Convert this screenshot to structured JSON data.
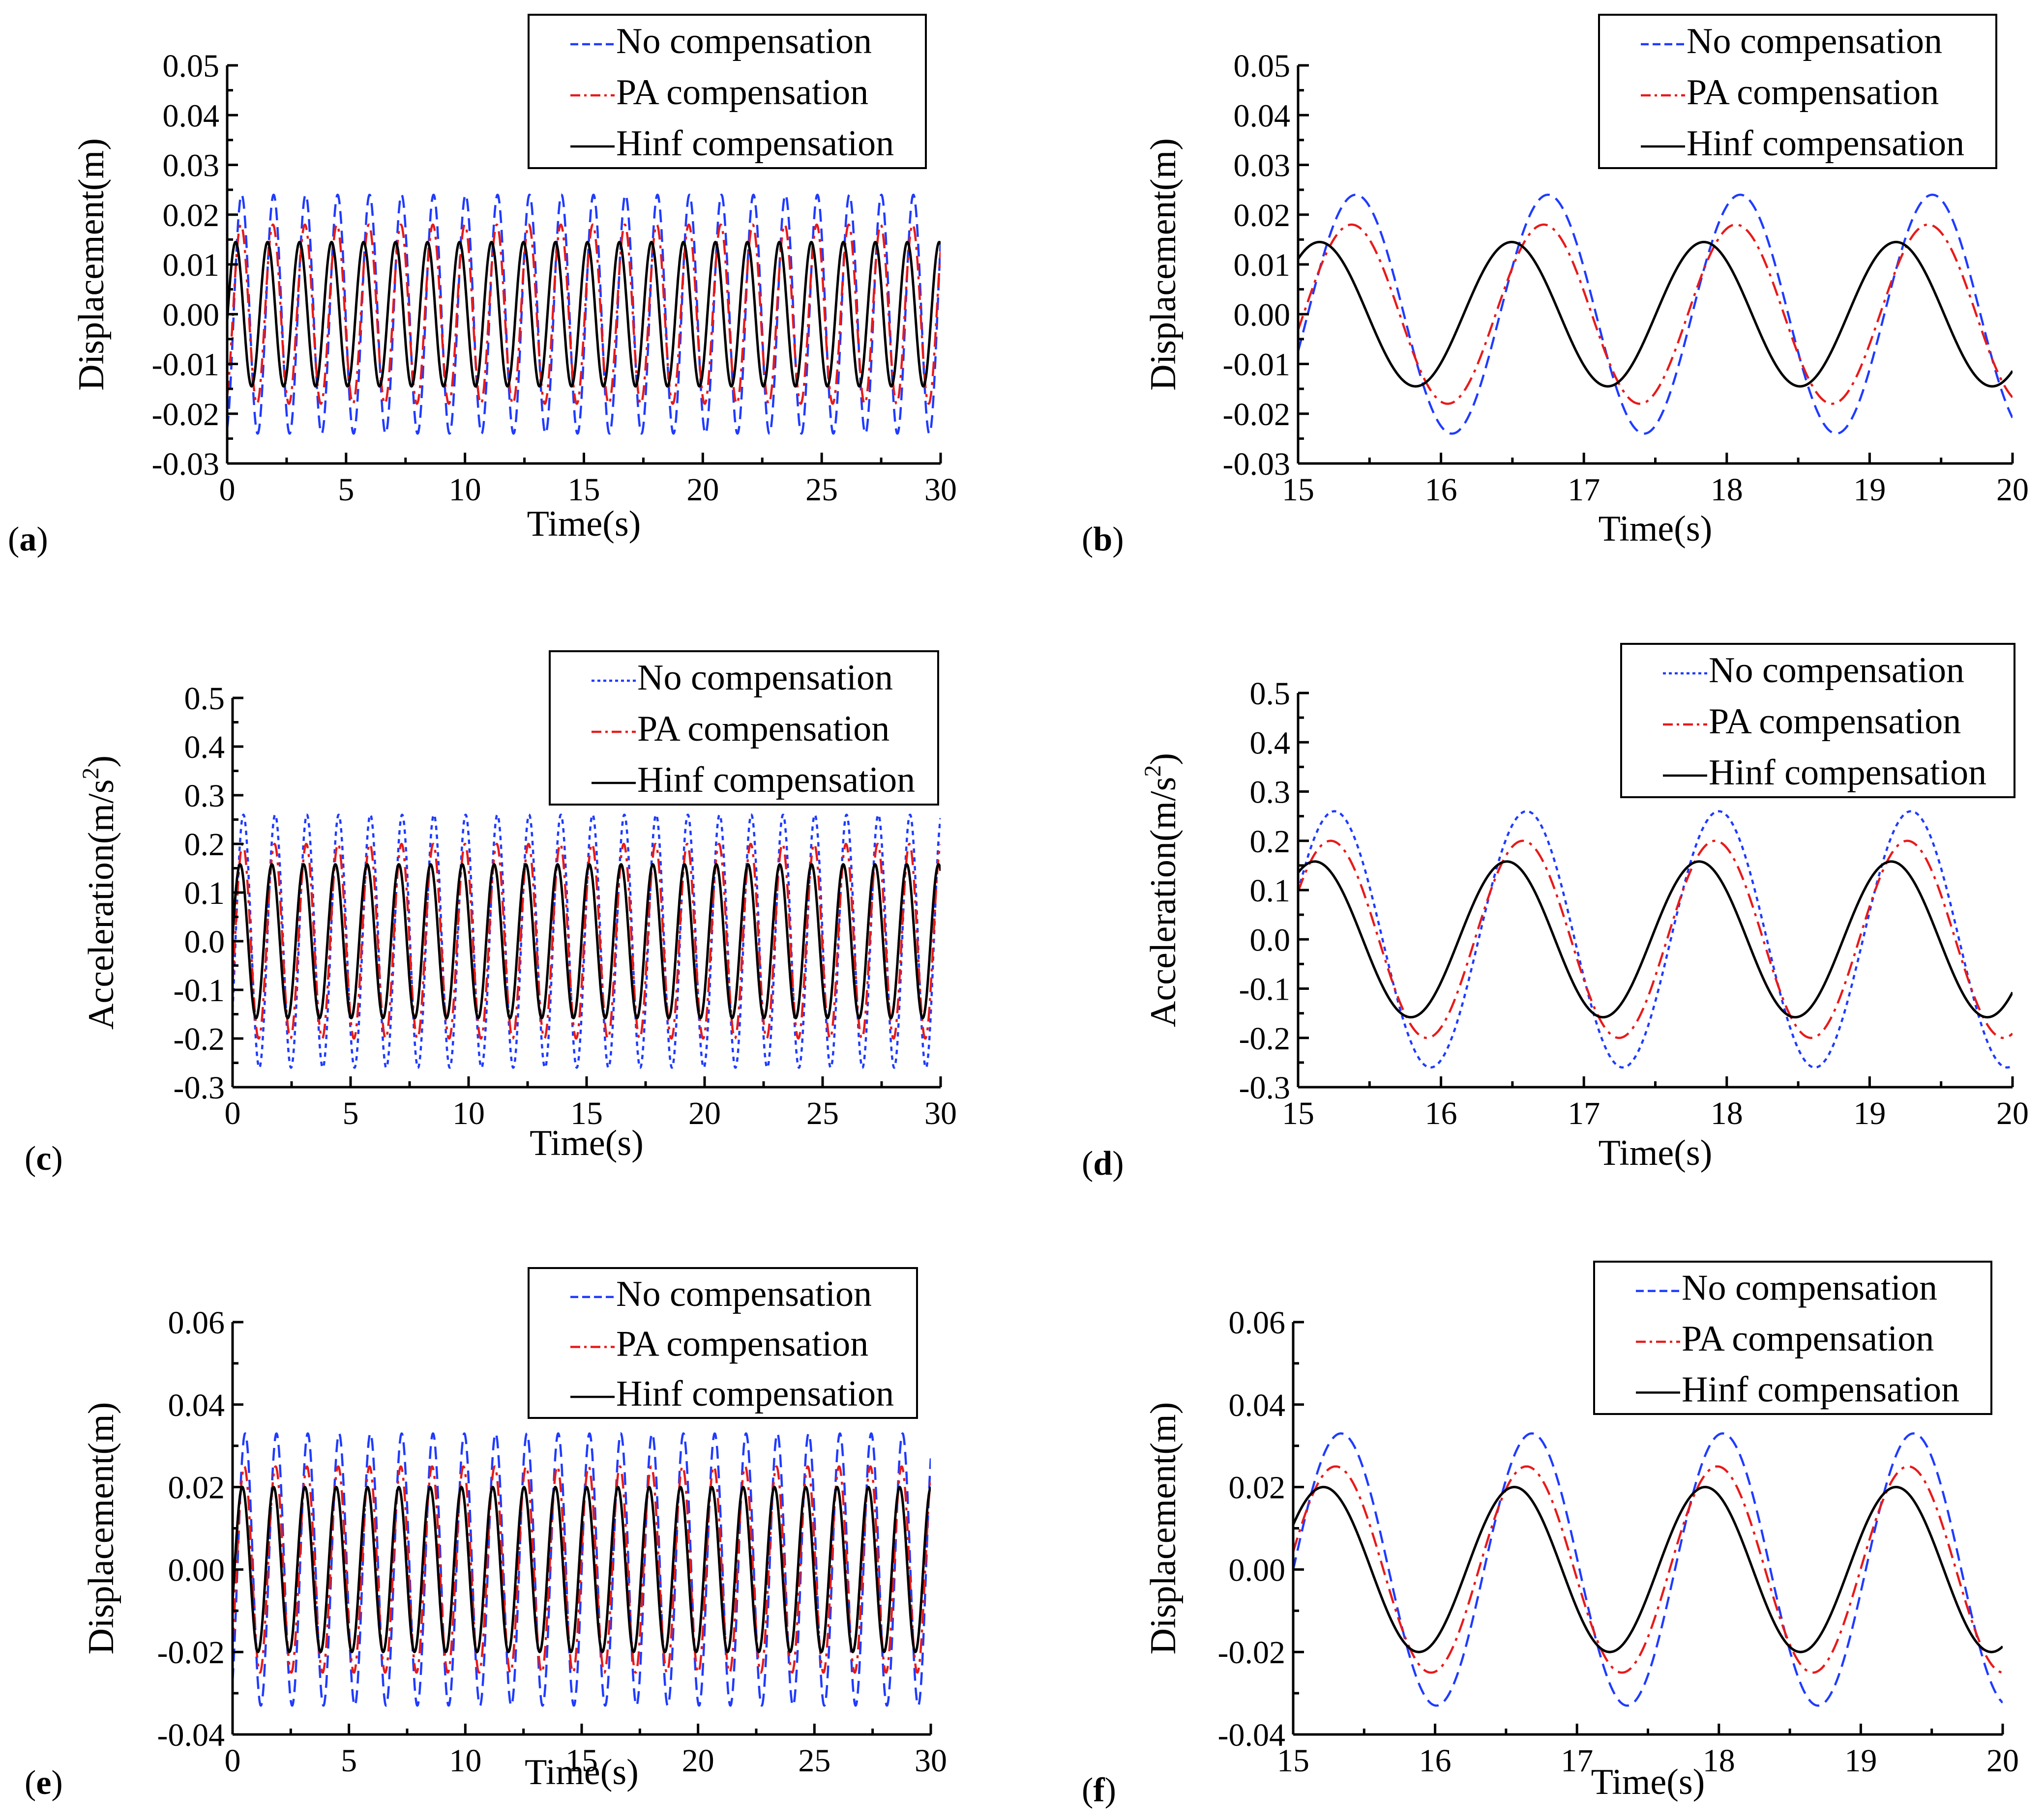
{
  "figure": {
    "panel_letter_open": "(",
    "panel_letter_close": ")"
  },
  "chart_data": [
    {
      "id": "a",
      "type": "line",
      "panel_label": "a",
      "xlabel": "Time(s)",
      "ylabel": "Displacement(m)",
      "xlim": [
        0,
        30
      ],
      "ylim": [
        -0.03,
        0.05
      ],
      "xticks": [
        "0",
        "5",
        "10",
        "15",
        "20",
        "25",
        "30"
      ],
      "yticks": [
        "-0.03",
        "-0.02",
        "-0.01",
        "0.00",
        "0.01",
        "0.02",
        "0.03",
        "0.04",
        "0.05"
      ],
      "series": [
        {
          "name": "No compensation",
          "color": "#1f3bff",
          "dash": "dash",
          "function": "sine",
          "amplitude": 0.024,
          "period": 1.345,
          "phase_deg": -73
        },
        {
          "name": "PA compensation",
          "color": "#e81a1a",
          "dash": "dashdot",
          "function": "sine",
          "amplitude": 0.018,
          "period": 1.345,
          "phase_deg": -65
        },
        {
          "name": "Hinf compensation",
          "color": "#000000",
          "dash": "solid",
          "function": "sine",
          "amplitude": 0.0145,
          "period": 1.345,
          "phase_deg": -5
        }
      ]
    },
    {
      "id": "b",
      "type": "line",
      "panel_label": "b",
      "xlabel": "Time(s)",
      "ylabel": "Displacement(m)",
      "xlim": [
        15,
        20
      ],
      "ylim": [
        -0.03,
        0.05
      ],
      "xticks": [
        "15",
        "16",
        "17",
        "18",
        "19",
        "20"
      ],
      "yticks": [
        "-0.03",
        "-0.02",
        "-0.01",
        "0.00",
        "0.01",
        "0.02",
        "0.03",
        "0.04",
        "0.05"
      ],
      "series": [
        {
          "name": "No compensation",
          "color": "#1f3bff",
          "dash": "dash",
          "function": "sine",
          "amplitude": 0.024,
          "period": 1.345,
          "phase_deg": -73
        },
        {
          "name": "PA compensation",
          "color": "#e81a1a",
          "dash": "dashdot",
          "function": "sine",
          "amplitude": 0.018,
          "period": 1.345,
          "phase_deg": -65
        },
        {
          "name": "Hinf compensation",
          "color": "#000000",
          "dash": "solid",
          "function": "sine",
          "amplitude": 0.0145,
          "period": 1.345,
          "phase_deg": -5
        }
      ]
    },
    {
      "id": "c",
      "type": "line",
      "panel_label": "c",
      "xlabel": "Time(s)",
      "ylabel": "Acceleration(m/s",
      "ylabel_sup": "2",
      "ylabel_end": ")",
      "xlim": [
        0,
        30
      ],
      "ylim": [
        -0.3,
        0.5
      ],
      "xticks": [
        "0",
        "5",
        "10",
        "15",
        "20",
        "25",
        "30"
      ],
      "yticks": [
        "-0.3",
        "-0.2",
        "-0.1",
        "0.0",
        "0.1",
        "0.2",
        "0.3",
        "0.4",
        "0.5"
      ],
      "series": [
        {
          "name": "No compensation",
          "color": "#1f3bff",
          "dash": "dot",
          "function": "sine",
          "amplitude": 0.26,
          "period": 1.345,
          "phase_deg": -33
        },
        {
          "name": "PA compensation",
          "color": "#e81a1a",
          "dash": "dashdot",
          "function": "sine",
          "amplitude": 0.2,
          "period": 1.345,
          "phase_deg": -26
        },
        {
          "name": "Hinf compensation",
          "color": "#000000",
          "dash": "solid",
          "function": "sine",
          "amplitude": 0.158,
          "period": 1.345,
          "phase_deg": 4
        }
      ]
    },
    {
      "id": "d",
      "type": "line",
      "panel_label": "d",
      "xlabel": "Time(s)",
      "ylabel": "Acceleration(m/s",
      "ylabel_sup": "2",
      "ylabel_end": ")",
      "xlim": [
        15,
        20
      ],
      "ylim": [
        -0.3,
        0.5
      ],
      "xticks": [
        "15",
        "16",
        "17",
        "18",
        "19",
        "20"
      ],
      "yticks": [
        "-0.3",
        "-0.2",
        "-0.1",
        "0.0",
        "0.1",
        "0.2",
        "0.3",
        "0.4",
        "0.5"
      ],
      "series": [
        {
          "name": "No compensation",
          "color": "#1f3bff",
          "dash": "dot",
          "function": "sine",
          "amplitude": 0.26,
          "period": 1.345,
          "phase_deg": -33
        },
        {
          "name": "PA compensation",
          "color": "#e81a1a",
          "dash": "dashdot",
          "function": "sine",
          "amplitude": 0.2,
          "period": 1.345,
          "phase_deg": -26
        },
        {
          "name": "Hinf compensation",
          "color": "#000000",
          "dash": "solid",
          "function": "sine",
          "amplitude": 0.158,
          "period": 1.345,
          "phase_deg": 4
        }
      ]
    },
    {
      "id": "e",
      "type": "line",
      "panel_label": "e",
      "xlabel": "Time(s)",
      "ylabel": "Displacement(m)",
      "xlim": [
        0,
        30
      ],
      "ylim": [
        -0.04,
        0.06
      ],
      "xticks": [
        "0",
        "5",
        "10",
        "15",
        "20",
        "25",
        "30"
      ],
      "yticks": [
        "-0.04",
        "-0.02",
        "0.00",
        "0.02",
        "0.04",
        "0.06"
      ],
      "series": [
        {
          "name": "No compensation",
          "color": "#1f3bff",
          "dash": "dash",
          "function": "sine",
          "amplitude": 0.033,
          "period": 1.345,
          "phase_deg": -55
        },
        {
          "name": "PA compensation",
          "color": "#e81a1a",
          "dash": "dashdot",
          "function": "sine",
          "amplitude": 0.025,
          "period": 1.345,
          "phase_deg": -45
        },
        {
          "name": "Hinf compensation",
          "color": "#000000",
          "dash": "solid",
          "function": "sine",
          "amplitude": 0.02,
          "period": 1.345,
          "phase_deg": -22
        }
      ]
    },
    {
      "id": "f",
      "type": "line",
      "panel_label": "f",
      "xlabel": "Time(s)",
      "ylabel": "Displacement(m)",
      "xlim": [
        15,
        20
      ],
      "ylim": [
        -0.04,
        0.06
      ],
      "xticks": [
        "15",
        "16",
        "17",
        "18",
        "19",
        "20"
      ],
      "yticks": [
        "-0.04",
        "-0.02",
        "0.00",
        "0.02",
        "0.04",
        "0.06"
      ],
      "series": [
        {
          "name": "No compensation",
          "color": "#1f3bff",
          "dash": "dash",
          "function": "sine",
          "amplitude": 0.033,
          "period": 1.345,
          "phase_deg": -55
        },
        {
          "name": "PA compensation",
          "color": "#e81a1a",
          "dash": "dashdot",
          "function": "sine",
          "amplitude": 0.025,
          "period": 1.345,
          "phase_deg": -45
        },
        {
          "name": "Hinf compensation",
          "color": "#000000",
          "dash": "solid",
          "function": "sine",
          "amplitude": 0.02,
          "period": 1.345,
          "phase_deg": -22
        }
      ]
    }
  ]
}
